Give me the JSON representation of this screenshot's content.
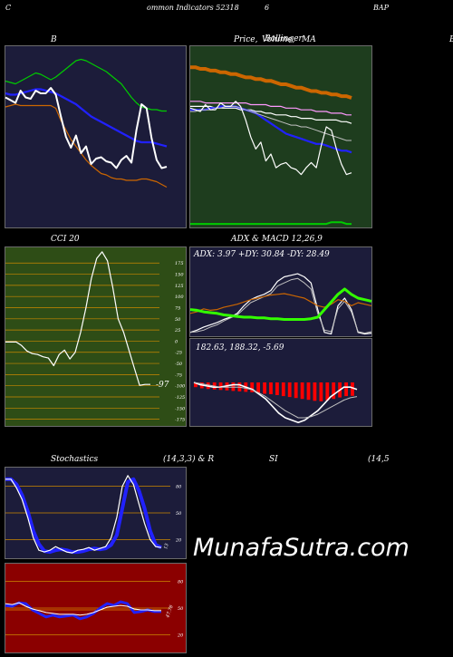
{
  "header": {
    "left": "C",
    "center": "ommon  Indicators 52318",
    "mid": "6",
    "right": "BAP"
  },
  "titles": {
    "bollinger": "B",
    "price": "Price,",
    "volume": "Volume,",
    "bollinger_word": "Bollinger",
    "ma": "MA",
    "right_edge": "B",
    "cci": "CCI 20",
    "adx_macd": "ADX  & MACD 12,26,9",
    "stoch_left": "Stochastics",
    "stoch_params": "(14,3,3) & R",
    "rsi": "SI",
    "rsi_params": "(14,5"
  },
  "watermark": "MunafaSutra.com",
  "colors": {
    "navy": "#1c1c3a",
    "green_bg": "#1e3d1e",
    "cci_bg": "#2e4d16",
    "rsi_bg": "#8b0000",
    "white": "#ffffff",
    "blue": "#2121ff",
    "orange": "#cc6600",
    "green": "#00cc00",
    "bright_green": "#33ff00",
    "red": "#ff0000"
  },
  "chart_data": [
    {
      "type": "line",
      "id": "bollinger",
      "series": [
        {
          "color": "#00cc00",
          "values": [
            91,
            90,
            89,
            91,
            93,
            95,
            97,
            96,
            94,
            92,
            94,
            97,
            100,
            103,
            106,
            107,
            106,
            104,
            102,
            100,
            98,
            95,
            92,
            89,
            84,
            79,
            75,
            72,
            71,
            70,
            70,
            69,
            69
          ]
        },
        {
          "color": "#2121ff",
          "values": [
            82,
            81,
            81,
            82,
            83,
            84,
            85,
            85,
            84,
            83,
            82,
            80,
            78,
            76,
            74,
            71,
            68,
            65,
            63,
            61,
            59,
            57,
            55,
            53,
            51,
            49,
            47,
            46,
            46,
            46,
            45,
            44,
            43
          ]
        },
        {
          "color": "#cc6600",
          "values": [
            72,
            73,
            74,
            73,
            73,
            73,
            73,
            73,
            73,
            73,
            71,
            62,
            55,
            48,
            43,
            38,
            33,
            29,
            26,
            23,
            22,
            20,
            19,
            19,
            18,
            18,
            18,
            19,
            19,
            18,
            17,
            15,
            13
          ]
        },
        {
          "color": "#ffffff",
          "values": [
            79,
            77,
            75,
            84,
            79,
            78,
            84,
            82,
            82,
            86,
            81,
            65,
            50,
            42,
            51,
            38,
            43,
            30,
            34,
            35,
            32,
            31,
            27,
            33,
            36,
            31,
            55,
            74,
            71,
            49,
            33,
            27,
            28
          ]
        }
      ]
    },
    {
      "type": "line",
      "id": "price_ma",
      "series": [
        {
          "color": "#cc6600",
          "values": [
            93,
            93,
            92,
            92,
            91,
            91,
            90,
            90,
            89,
            89,
            88,
            87,
            87,
            86,
            86,
            85,
            85,
            84,
            83,
            83,
            82,
            81,
            81,
            80,
            79,
            79,
            78,
            78,
            77,
            77,
            76,
            76,
            75
          ]
        },
        {
          "color": "#ff99ff",
          "values": [
            73,
            73,
            73,
            72,
            72,
            72,
            72,
            72,
            72,
            72,
            72,
            72,
            71,
            71,
            71,
            71,
            70,
            70,
            70,
            69,
            69,
            69,
            68,
            68,
            68,
            67,
            67,
            67,
            66,
            66,
            66,
            65,
            65
          ]
        },
        {
          "color": "#ffffff",
          "values": [
            70,
            70,
            70,
            70,
            70,
            69,
            69,
            69,
            69,
            69,
            68,
            68,
            68,
            67,
            67,
            66,
            66,
            65,
            65,
            65,
            64,
            64,
            63,
            63,
            63,
            62,
            62,
            62,
            62,
            62,
            61,
            61,
            60
          ]
        },
        {
          "color": "#2121ff",
          "values": [
            68,
            68,
            68,
            68,
            69,
            69,
            70,
            70,
            70,
            70,
            69,
            68,
            67,
            66,
            64,
            62,
            60,
            58,
            56,
            54,
            53,
            52,
            51,
            50,
            49,
            48,
            48,
            47,
            46,
            45,
            44,
            44,
            43
          ]
        },
        {
          "color": "#c0c0c0",
          "values": [
            67,
            67,
            68,
            68,
            68,
            69,
            69,
            70,
            70,
            70,
            69,
            68,
            67,
            66,
            65,
            64,
            63,
            62,
            61,
            60,
            59,
            59,
            58,
            58,
            57,
            56,
            55,
            54,
            53,
            52,
            51,
            50,
            50
          ]
        },
        {
          "color": "#ffffff",
          "values": [
            69,
            68,
            67,
            71,
            68,
            68,
            72,
            70,
            70,
            73,
            70,
            62,
            52,
            45,
            49,
            38,
            42,
            34,
            36,
            37,
            34,
            33,
            30,
            34,
            37,
            34,
            47,
            58,
            56,
            45,
            36,
            30,
            31
          ]
        },
        {
          "color": "#00cc00",
          "values": [
            1,
            1,
            1,
            1,
            1,
            1,
            1,
            1,
            1,
            1,
            1,
            1,
            1,
            1,
            1,
            1,
            1,
            1,
            1,
            1,
            1,
            1,
            1,
            1,
            1,
            1,
            1,
            1,
            2,
            2,
            2,
            1,
            1
          ]
        }
      ]
    },
    {
      "type": "line",
      "id": "cci",
      "yticks": [
        175,
        150,
        125,
        100,
        75,
        50,
        25,
        0,
        -25,
        -50,
        -75,
        -100,
        -125,
        -150,
        -175
      ],
      "ylim": [
        -190,
        210
      ],
      "last_label": "-97",
      "series": [
        {
          "color": "#ffffff",
          "values": [
            -2,
            -2,
            -2,
            -10,
            -22,
            -28,
            -30,
            -35,
            -38,
            -55,
            -30,
            -20,
            -40,
            -25,
            20,
            75,
            140,
            185,
            200,
            180,
            120,
            50,
            20,
            -20,
            -60,
            -99,
            -97,
            -97
          ]
        }
      ]
    },
    {
      "type": "line",
      "id": "adx",
      "label": "ADX: 3.97 +DY: 30.84  -DY: 28.49",
      "series": [
        {
          "color": "#ffffff",
          "values": [
            5,
            8,
            12,
            15,
            18,
            22,
            25,
            30,
            40,
            48,
            52,
            55,
            60,
            72,
            78,
            80,
            82,
            78,
            70,
            35,
            5,
            3,
            40,
            50,
            35,
            5,
            3,
            4
          ]
        },
        {
          "color": "#c0c0c0",
          "values": [
            5,
            6,
            8,
            12,
            15,
            20,
            24,
            28,
            36,
            44,
            48,
            52,
            56,
            66,
            70,
            74,
            76,
            70,
            62,
            30,
            8,
            6,
            36,
            46,
            32,
            6,
            4,
            6
          ]
        },
        {
          "color": "#cc6600",
          "values": [
            30,
            32,
            36,
            34,
            35,
            38,
            40,
            42,
            45,
            48,
            50,
            52,
            54,
            55,
            56,
            54,
            52,
            50,
            45,
            40,
            38,
            42,
            48,
            46,
            40,
            44,
            42,
            40
          ]
        },
        {
          "color": "#33ff00",
          "values": [
            35,
            34,
            32,
            31,
            30,
            28,
            27,
            26,
            25,
            25,
            24,
            24,
            23,
            23,
            22,
            22,
            22,
            22,
            23,
            25,
            35,
            45,
            55,
            62,
            55,
            50,
            48,
            46
          ]
        }
      ]
    },
    {
      "type": "bar",
      "id": "macd",
      "label": "182.63,  188.32,  -5.69",
      "series": [
        {
          "name": "hist",
          "color": "#ff0000",
          "values": [
            -2,
            -2.5,
            -2.8,
            -3,
            -3.2,
            -3.4,
            -3.6,
            -3.8,
            -4,
            -4.2,
            -4.4,
            -4.8,
            -5,
            -5.4,
            -5.8,
            -6.2,
            -6.6,
            -7,
            -7.4,
            -7.8,
            -8,
            -7.6,
            -7,
            -6.4,
            -5.8,
            -5.69
          ]
        },
        {
          "name": "macd",
          "color": "#ffffff",
          "values": [
            0,
            -1,
            -1.5,
            -2,
            -2,
            -1.5,
            -1,
            -1,
            -2,
            -3,
            -5,
            -7,
            -10,
            -13,
            -15,
            -16,
            -17,
            -16,
            -14,
            -12,
            -9,
            -6,
            -4,
            -2,
            -2,
            -3
          ]
        },
        {
          "name": "signal",
          "color": "#c0c0c0",
          "values": [
            0,
            -0.5,
            -1,
            -1.5,
            -2,
            -2,
            -2,
            -2,
            -2.5,
            -3.2,
            -4.5,
            -6,
            -8,
            -10,
            -12,
            -13.5,
            -15,
            -15,
            -14.5,
            -13.5,
            -12,
            -10.5,
            -9,
            -7.5,
            -6.5,
            -6
          ]
        }
      ]
    },
    {
      "type": "line",
      "id": "stochastics",
      "yticks": [
        80,
        50,
        20
      ],
      "last_label": "13",
      "series": [
        {
          "color": "#2121ff",
          "values": [
            88,
            88,
            82,
            70,
            52,
            30,
            15,
            7,
            6,
            8,
            9,
            8,
            6,
            6,
            7,
            9,
            10,
            9,
            10,
            14,
            25,
            55,
            85,
            88,
            75,
            55,
            30,
            14,
            11
          ]
        },
        {
          "color": "#ffffff",
          "values": [
            88,
            88,
            78,
            65,
            45,
            22,
            8,
            6,
            8,
            12,
            9,
            6,
            5,
            8,
            9,
            11,
            8,
            10,
            12,
            22,
            45,
            80,
            92,
            82,
            60,
            38,
            20,
            12,
            11
          ]
        }
      ]
    },
    {
      "type": "line",
      "id": "rsi",
      "yticks": [
        80,
        50,
        20
      ],
      "last_label": "47.78",
      "series": [
        {
          "color": "#2121ff",
          "values": [
            53,
            52,
            56,
            55,
            48,
            44,
            40,
            42,
            40,
            41,
            42,
            38,
            40,
            44,
            50,
            55,
            53,
            57,
            55,
            45,
            46,
            48,
            46,
            46
          ]
        },
        {
          "color": "#ffffff",
          "values": [
            55,
            54,
            56,
            52,
            49,
            47,
            45,
            44,
            43,
            43,
            43,
            42,
            43,
            45,
            48,
            51,
            52,
            53,
            52,
            49,
            48,
            48,
            47,
            47
          ]
        },
        {
          "color": "#cc6600",
          "values": [
            48,
            48,
            48,
            48,
            48,
            48,
            48,
            48,
            48,
            48,
            48,
            48,
            48,
            48,
            48,
            48,
            48,
            48,
            48,
            48,
            48,
            48,
            48,
            48
          ]
        }
      ]
    }
  ]
}
